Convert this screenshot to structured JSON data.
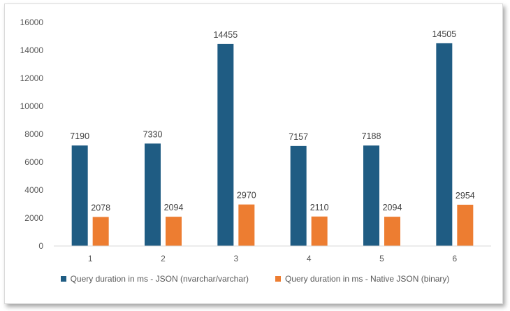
{
  "chart_data": {
    "type": "bar",
    "categories": [
      "1",
      "2",
      "3",
      "4",
      "5",
      "6"
    ],
    "series": [
      {
        "name": "Query duration in ms - JSON (nvarchar/varchar)",
        "values": [
          7190,
          7330,
          14455,
          7157,
          7188,
          14505
        ],
        "color": "#1f5c83"
      },
      {
        "name": "Query duration in ms - Native JSON (binary)",
        "values": [
          2078,
          2094,
          2970,
          2110,
          2094,
          2954
        ],
        "color": "#ed7d31"
      }
    ],
    "ylim": [
      0,
      16000
    ],
    "yticks": [
      0,
      2000,
      4000,
      6000,
      8000,
      10000,
      12000,
      14000,
      16000
    ],
    "grid": false,
    "data_labels": true,
    "legend_position": "bottom"
  }
}
